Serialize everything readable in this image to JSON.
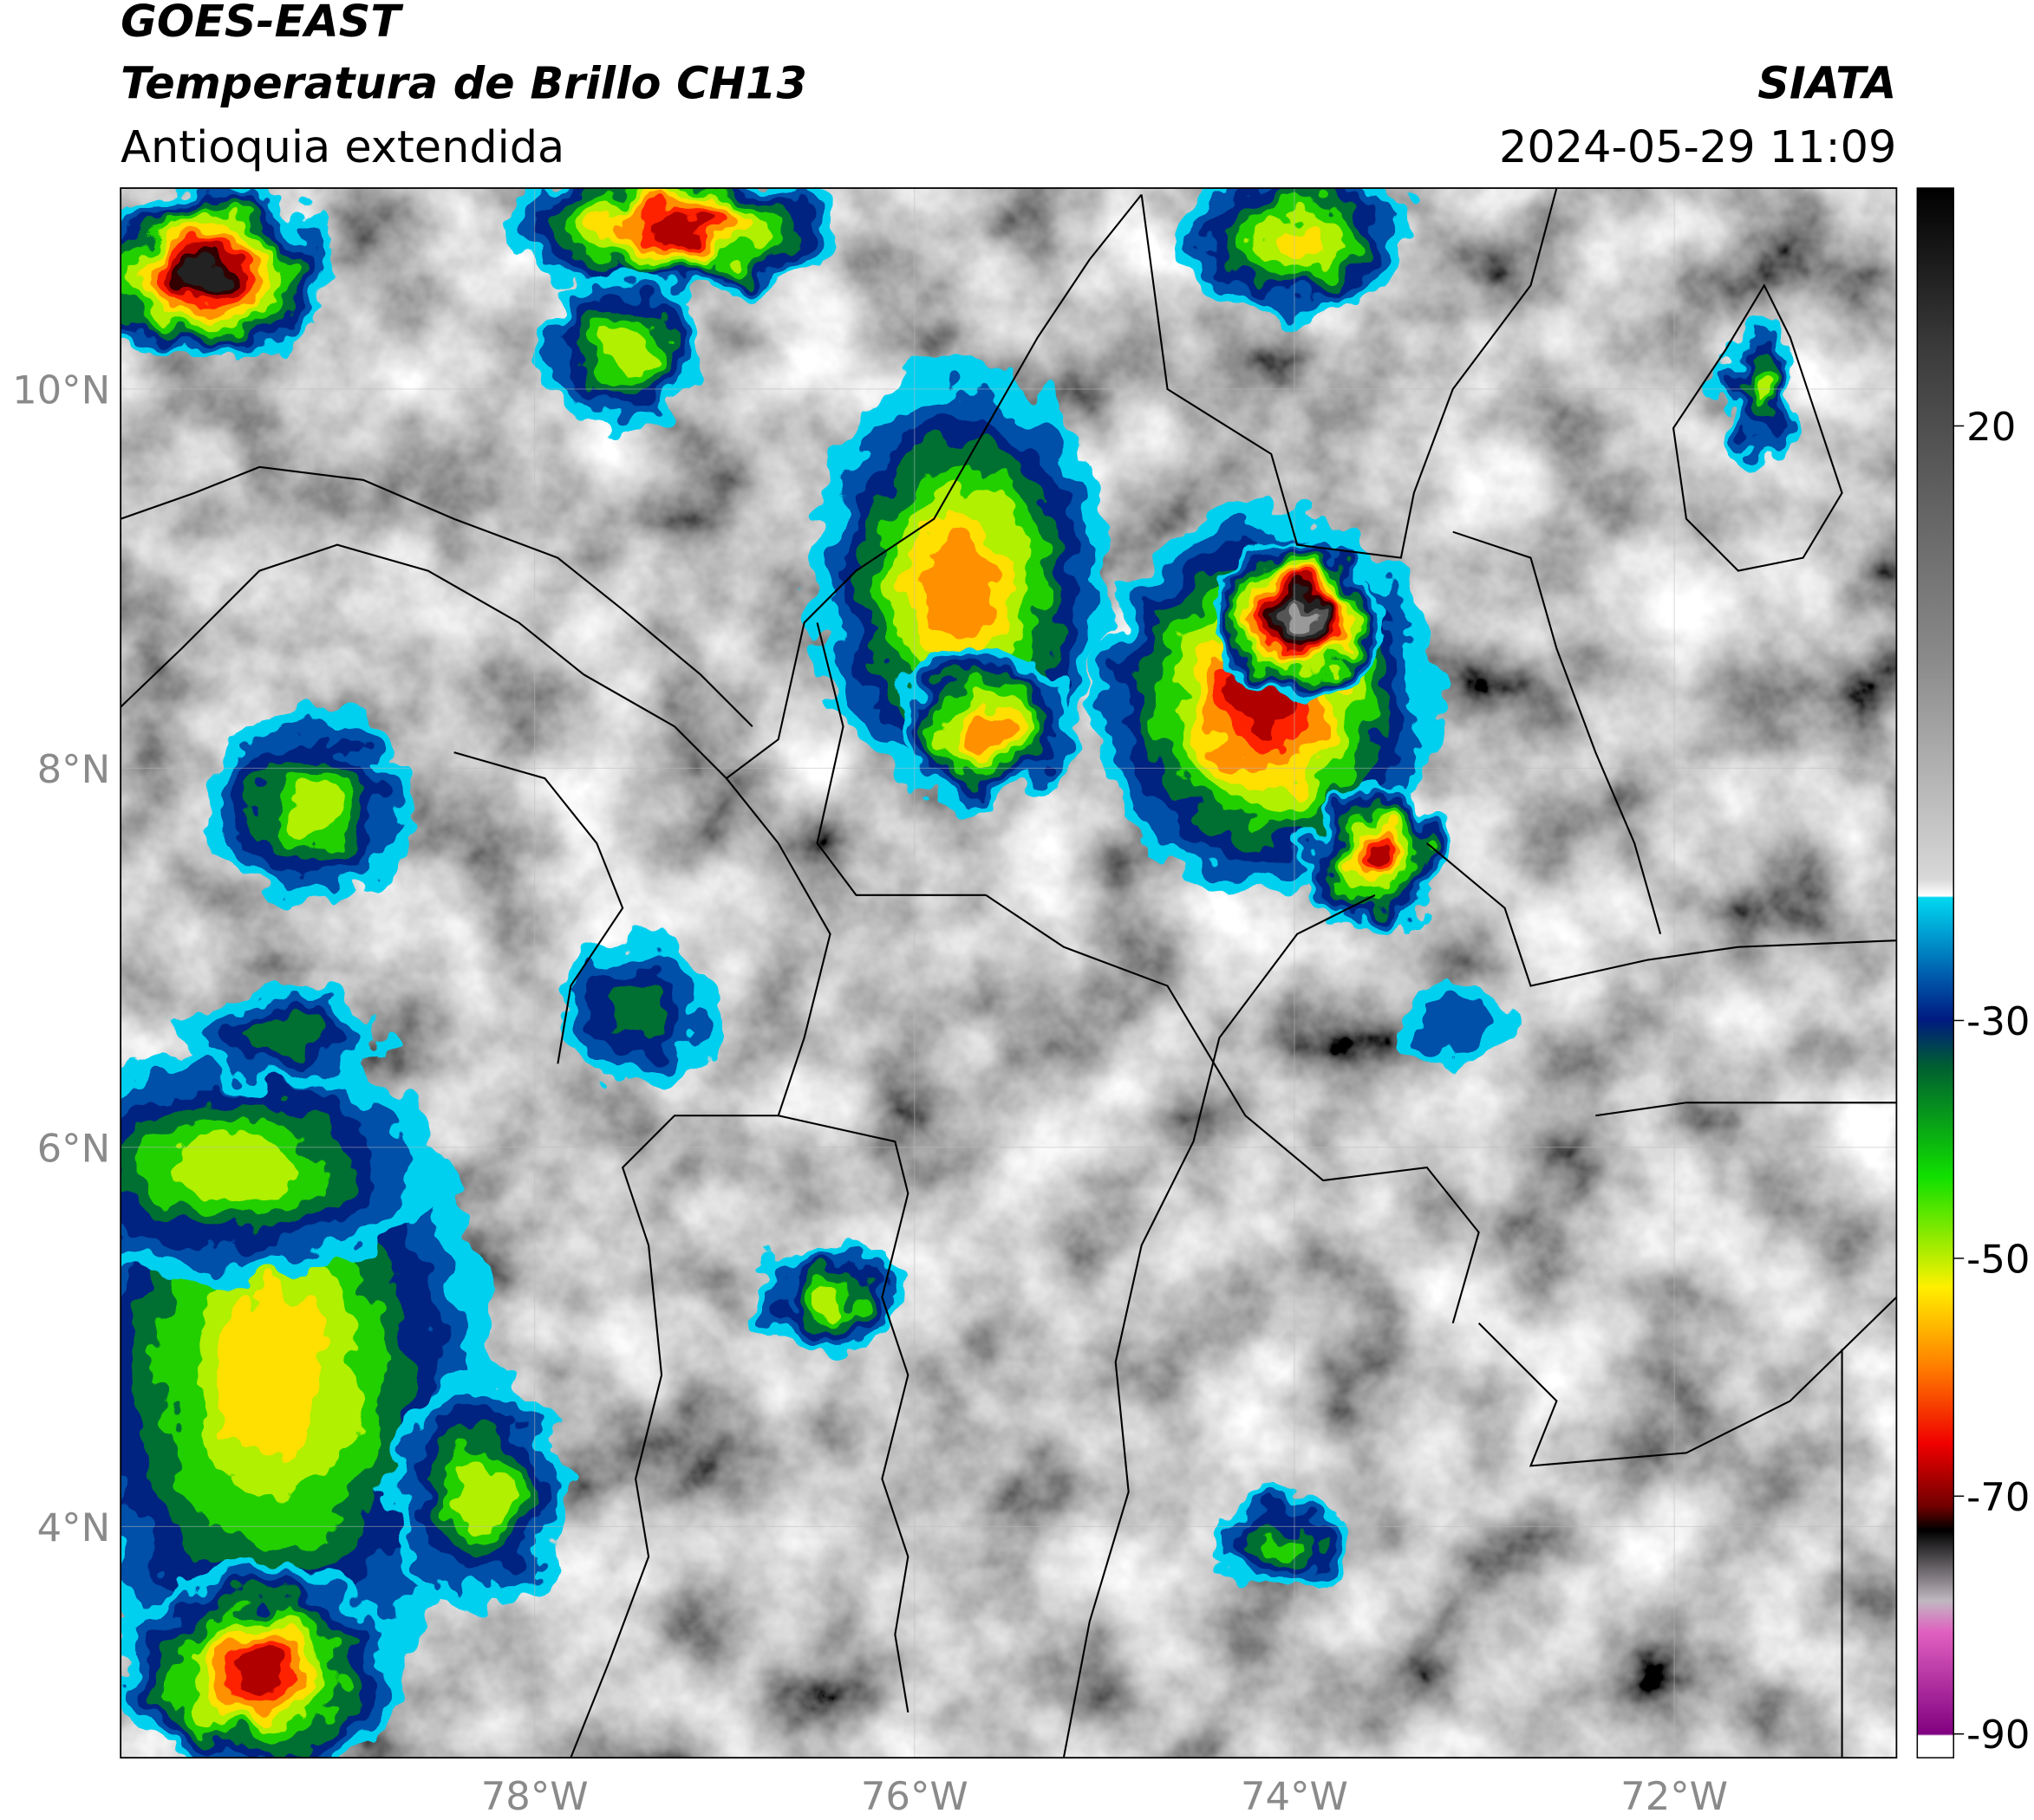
{
  "header": {
    "title": "GOES-EAST",
    "subtitle": "Temperatura de Brillo CH13",
    "region": "Antioquia extendida",
    "source": "SIATA",
    "datetime": "2024-05-29 11:09"
  },
  "map": {
    "xlim": [
      -80.18,
      -70.83
    ],
    "ylim": [
      2.78,
      11.06
    ],
    "xticks": [
      {
        "value": -78,
        "label": "78°W"
      },
      {
        "value": -76,
        "label": "76°W"
      },
      {
        "value": -74,
        "label": "74°W"
      },
      {
        "value": -72,
        "label": "72°W"
      }
    ],
    "yticks": [
      {
        "value": 10,
        "label": "10°N"
      },
      {
        "value": 8,
        "label": "8°N"
      },
      {
        "value": 6,
        "label": "6°N"
      },
      {
        "value": 4,
        "label": "4°N"
      }
    ],
    "grid": true
  },
  "colorbar": {
    "lim": [
      -92,
      40
    ],
    "ticks": [
      20,
      -30,
      -50,
      -70,
      -90
    ]
  }
}
